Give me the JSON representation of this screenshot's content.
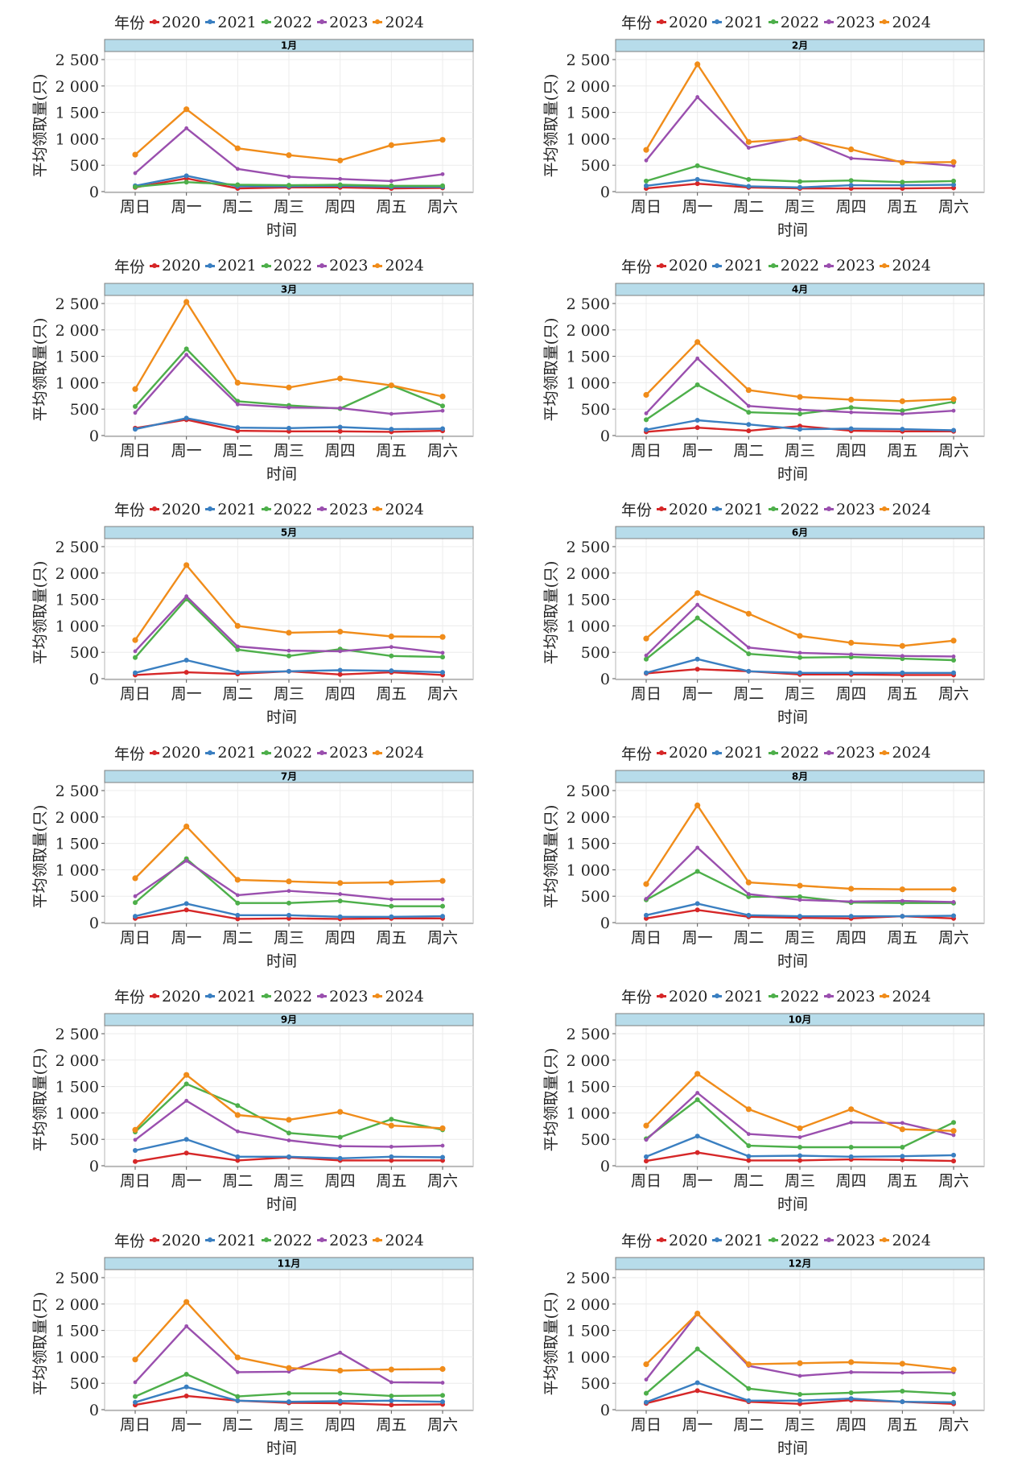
{
  "legend": {
    "title": "年份",
    "years": [
      "2020",
      "2021",
      "2022",
      "2023",
      "2024"
    ],
    "colors": {
      "2020": "#d62728",
      "2021": "#3a7fc1",
      "2022": "#4daf4a",
      "2023": "#9a4fae",
      "2024": "#f08c1a"
    }
  },
  "strip_color": "#b7dcea",
  "chart_data": [
    {
      "type": "line",
      "title": "1月",
      "xlabel": "时间",
      "ylabel": "平均领取量(只)",
      "ylim": [
        0,
        2500
      ],
      "yticks": [
        "0",
        "500",
        "1 000",
        "1 500",
        "2 000",
        "2 500"
      ],
      "yticks_values": [
        0,
        500,
        1000,
        1500,
        2000,
        2500
      ],
      "grid": true,
      "legend": "top",
      "categories": [
        "周日",
        "周一",
        "周二",
        "周三",
        "周四",
        "周五",
        "周六"
      ],
      "series": [
        {
          "name": "2020",
          "values": [
            80,
            250,
            60,
            80,
            80,
            60,
            70
          ]
        },
        {
          "name": "2021",
          "values": [
            110,
            300,
            100,
            100,
            110,
            90,
            90
          ]
        },
        {
          "name": "2022",
          "values": [
            90,
            180,
            130,
            120,
            130,
            110,
            110
          ]
        },
        {
          "name": "2023",
          "values": [
            350,
            1200,
            430,
            280,
            240,
            200,
            330
          ]
        },
        {
          "name": "2024",
          "values": [
            700,
            1560,
            820,
            690,
            590,
            880,
            980
          ]
        }
      ]
    },
    {
      "type": "line",
      "title": "2月",
      "xlabel": "时间",
      "ylabel": "平均领取量(只)",
      "ylim": [
        0,
        2500
      ],
      "yticks": [
        "0",
        "500",
        "1 000",
        "1 500",
        "2 000",
        "2 500"
      ],
      "yticks_values": [
        0,
        500,
        1000,
        1500,
        2000,
        2500
      ],
      "grid": true,
      "legend": "top",
      "categories": [
        "周日",
        "周一",
        "周二",
        "周三",
        "周四",
        "周五",
        "周六"
      ],
      "series": [
        {
          "name": "2020",
          "values": [
            60,
            150,
            80,
            60,
            60,
            60,
            70
          ]
        },
        {
          "name": "2021",
          "values": [
            110,
            230,
            100,
            80,
            120,
            120,
            130
          ]
        },
        {
          "name": "2022",
          "values": [
            200,
            490,
            230,
            190,
            210,
            180,
            200
          ]
        },
        {
          "name": "2023",
          "values": [
            590,
            1790,
            830,
            1030,
            630,
            570,
            490
          ]
        },
        {
          "name": "2024",
          "values": [
            790,
            2410,
            940,
            1000,
            800,
            550,
            560
          ]
        }
      ]
    },
    {
      "type": "line",
      "title": "3月",
      "xlabel": "时间",
      "ylabel": "平均领取量(只)",
      "ylim": [
        0,
        2500
      ],
      "yticks": [
        "0",
        "500",
        "1 000",
        "1 500",
        "2 000",
        "2 500"
      ],
      "yticks_values": [
        0,
        500,
        1000,
        1500,
        2000,
        2500
      ],
      "grid": true,
      "legend": "top",
      "categories": [
        "周日",
        "周一",
        "周二",
        "周三",
        "周四",
        "周五",
        "周六"
      ],
      "series": [
        {
          "name": "2020",
          "values": [
            140,
            300,
            90,
            80,
            80,
            70,
            90
          ]
        },
        {
          "name": "2021",
          "values": [
            120,
            330,
            150,
            140,
            160,
            120,
            130
          ]
        },
        {
          "name": "2022",
          "values": [
            550,
            1640,
            650,
            570,
            510,
            950,
            560
          ]
        },
        {
          "name": "2023",
          "values": [
            430,
            1530,
            590,
            530,
            520,
            410,
            470
          ]
        },
        {
          "name": "2024",
          "values": [
            880,
            2530,
            1000,
            910,
            1080,
            950,
            740
          ]
        }
      ]
    },
    {
      "type": "line",
      "title": "4月",
      "xlabel": "时间",
      "ylabel": "平均领取量(只)",
      "ylim": [
        0,
        2500
      ],
      "yticks": [
        "0",
        "500",
        "1 000",
        "1 500",
        "2 000",
        "2 500"
      ],
      "yticks_values": [
        0,
        500,
        1000,
        1500,
        2000,
        2500
      ],
      "grid": true,
      "legend": "top",
      "categories": [
        "周日",
        "周一",
        "周二",
        "周三",
        "周四",
        "周五",
        "周六"
      ],
      "series": [
        {
          "name": "2020",
          "values": [
            70,
            150,
            90,
            180,
            90,
            80,
            80
          ]
        },
        {
          "name": "2021",
          "values": [
            110,
            290,
            210,
            120,
            130,
            120,
            100
          ]
        },
        {
          "name": "2022",
          "values": [
            300,
            960,
            440,
            410,
            530,
            470,
            640
          ]
        },
        {
          "name": "2023",
          "values": [
            420,
            1460,
            560,
            490,
            440,
            410,
            470
          ]
        },
        {
          "name": "2024",
          "values": [
            770,
            1770,
            860,
            730,
            680,
            650,
            690
          ]
        }
      ]
    },
    {
      "type": "line",
      "title": "5月",
      "xlabel": "时间",
      "ylabel": "平均领取量(只)",
      "ylim": [
        0,
        2500
      ],
      "yticks": [
        "0",
        "500",
        "1 000",
        "1 500",
        "2 000",
        "2 500"
      ],
      "yticks_values": [
        0,
        500,
        1000,
        1500,
        2000,
        2500
      ],
      "grid": true,
      "legend": "top",
      "categories": [
        "周日",
        "周一",
        "周二",
        "周三",
        "周四",
        "周五",
        "周六"
      ],
      "series": [
        {
          "name": "2020",
          "values": [
            70,
            120,
            90,
            140,
            80,
            120,
            70
          ]
        },
        {
          "name": "2021",
          "values": [
            110,
            350,
            120,
            140,
            160,
            150,
            120
          ]
        },
        {
          "name": "2022",
          "values": [
            400,
            1510,
            550,
            430,
            560,
            430,
            410
          ]
        },
        {
          "name": "2023",
          "values": [
            520,
            1560,
            610,
            530,
            520,
            600,
            490
          ]
        },
        {
          "name": "2024",
          "values": [
            730,
            2150,
            1000,
            870,
            890,
            800,
            790
          ]
        }
      ]
    },
    {
      "type": "line",
      "title": "6月",
      "xlabel": "时间",
      "ylabel": "平均领取量(只)",
      "ylim": [
        0,
        2500
      ],
      "yticks": [
        "0",
        "500",
        "1 000",
        "1 500",
        "2 000",
        "2 500"
      ],
      "yticks_values": [
        0,
        500,
        1000,
        1500,
        2000,
        2500
      ],
      "grid": true,
      "legend": "top",
      "categories": [
        "周日",
        "周一",
        "周二",
        "周三",
        "周四",
        "周五",
        "周六"
      ],
      "series": [
        {
          "name": "2020",
          "values": [
            100,
            180,
            140,
            80,
            80,
            70,
            70
          ]
        },
        {
          "name": "2021",
          "values": [
            110,
            370,
            140,
            110,
            110,
            110,
            110
          ]
        },
        {
          "name": "2022",
          "values": [
            370,
            1150,
            470,
            400,
            410,
            380,
            350
          ]
        },
        {
          "name": "2023",
          "values": [
            440,
            1400,
            590,
            490,
            460,
            430,
            420
          ]
        },
        {
          "name": "2024",
          "values": [
            760,
            1620,
            1230,
            810,
            680,
            620,
            720
          ]
        }
      ]
    },
    {
      "type": "line",
      "title": "7月",
      "xlabel": "时间",
      "ylabel": "平均领取量(只)",
      "ylim": [
        0,
        2500
      ],
      "yticks": [
        "0",
        "500",
        "1 000",
        "1 500",
        "2 000",
        "2 500"
      ],
      "yticks_values": [
        0,
        500,
        1000,
        1500,
        2000,
        2500
      ],
      "grid": true,
      "legend": "top",
      "categories": [
        "周日",
        "周一",
        "周二",
        "周三",
        "周四",
        "周五",
        "周六"
      ],
      "series": [
        {
          "name": "2020",
          "values": [
            80,
            240,
            70,
            80,
            70,
            80,
            80
          ]
        },
        {
          "name": "2021",
          "values": [
            120,
            360,
            140,
            140,
            110,
            110,
            120
          ]
        },
        {
          "name": "2022",
          "values": [
            380,
            1210,
            370,
            370,
            410,
            310,
            310
          ]
        },
        {
          "name": "2023",
          "values": [
            500,
            1170,
            520,
            600,
            540,
            440,
            440
          ]
        },
        {
          "name": "2024",
          "values": [
            840,
            1820,
            810,
            780,
            750,
            760,
            790
          ]
        }
      ]
    },
    {
      "type": "line",
      "title": "8月",
      "xlabel": "时间",
      "ylabel": "平均领取量(只)",
      "ylim": [
        0,
        2500
      ],
      "yticks": [
        "0",
        "500",
        "1 000",
        "1 500",
        "2 000",
        "2 500"
      ],
      "yticks_values": [
        0,
        500,
        1000,
        1500,
        2000,
        2500
      ],
      "grid": true,
      "legend": "top",
      "categories": [
        "周日",
        "周一",
        "周二",
        "周三",
        "周四",
        "周五",
        "周六"
      ],
      "series": [
        {
          "name": "2020",
          "values": [
            80,
            240,
            110,
            90,
            80,
            120,
            80
          ]
        },
        {
          "name": "2021",
          "values": [
            140,
            360,
            140,
            120,
            120,
            120,
            130
          ]
        },
        {
          "name": "2022",
          "values": [
            430,
            970,
            490,
            490,
            380,
            370,
            370
          ]
        },
        {
          "name": "2023",
          "values": [
            450,
            1420,
            540,
            430,
            400,
            410,
            390
          ]
        },
        {
          "name": "2024",
          "values": [
            730,
            2220,
            760,
            700,
            640,
            630,
            630
          ]
        }
      ]
    },
    {
      "type": "line",
      "title": "9月",
      "xlabel": "时间",
      "ylabel": "平均领取量(只)",
      "ylim": [
        0,
        2500
      ],
      "yticks": [
        "0",
        "500",
        "1 000",
        "1 500",
        "2 000",
        "2 500"
      ],
      "yticks_values": [
        0,
        500,
        1000,
        1500,
        2000,
        2500
      ],
      "grid": true,
      "legend": "top",
      "categories": [
        "周日",
        "周一",
        "周二",
        "周三",
        "周四",
        "周五",
        "周六"
      ],
      "series": [
        {
          "name": "2020",
          "values": [
            80,
            240,
            100,
            160,
            100,
            100,
            100
          ]
        },
        {
          "name": "2021",
          "values": [
            290,
            500,
            170,
            170,
            140,
            170,
            160
          ]
        },
        {
          "name": "2022",
          "values": [
            640,
            1550,
            1140,
            620,
            540,
            880,
            680
          ]
        },
        {
          "name": "2023",
          "values": [
            490,
            1230,
            650,
            480,
            370,
            360,
            380
          ]
        },
        {
          "name": "2024",
          "values": [
            680,
            1720,
            960,
            870,
            1020,
            760,
            710
          ]
        }
      ]
    },
    {
      "type": "line",
      "title": "10月",
      "xlabel": "时间",
      "ylabel": "平均领取量(只)",
      "ylim": [
        0,
        2500
      ],
      "yticks": [
        "0",
        "500",
        "1 000",
        "1 500",
        "2 000",
        "2 500"
      ],
      "yticks_values": [
        0,
        500,
        1000,
        1500,
        2000,
        2500
      ],
      "grid": true,
      "legend": "top",
      "categories": [
        "周日",
        "周一",
        "周二",
        "周三",
        "周四",
        "周五",
        "周六"
      ],
      "series": [
        {
          "name": "2020",
          "values": [
            90,
            250,
            100,
            100,
            120,
            110,
            90
          ]
        },
        {
          "name": "2021",
          "values": [
            170,
            560,
            180,
            190,
            170,
            180,
            200
          ]
        },
        {
          "name": "2022",
          "values": [
            510,
            1250,
            380,
            350,
            350,
            350,
            820
          ]
        },
        {
          "name": "2023",
          "values": [
            490,
            1380,
            600,
            540,
            820,
            810,
            580
          ]
        },
        {
          "name": "2024",
          "values": [
            760,
            1740,
            1070,
            710,
            1070,
            690,
            660
          ]
        }
      ]
    },
    {
      "type": "line",
      "title": "11月",
      "xlabel": "时间",
      "ylabel": "平均领取量(只)",
      "ylim": [
        0,
        2500
      ],
      "yticks": [
        "0",
        "500",
        "1 000",
        "1 500",
        "2 000",
        "2 500"
      ],
      "yticks_values": [
        0,
        500,
        1000,
        1500,
        2000,
        2500
      ],
      "grid": true,
      "legend": "top",
      "categories": [
        "周日",
        "周一",
        "周二",
        "周三",
        "周四",
        "周五",
        "周六"
      ],
      "series": [
        {
          "name": "2020",
          "values": [
            90,
            260,
            170,
            130,
            120,
            90,
            100
          ]
        },
        {
          "name": "2021",
          "values": [
            140,
            430,
            170,
            150,
            160,
            170,
            150
          ]
        },
        {
          "name": "2022",
          "values": [
            250,
            670,
            250,
            310,
            310,
            260,
            270
          ]
        },
        {
          "name": "2023",
          "values": [
            520,
            1580,
            710,
            720,
            1080,
            520,
            510
          ]
        },
        {
          "name": "2024",
          "values": [
            950,
            2040,
            990,
            790,
            740,
            760,
            770
          ]
        }
      ]
    },
    {
      "type": "line",
      "title": "12月",
      "xlabel": "时间",
      "ylabel": "平均领取量(只)",
      "ylim": [
        0,
        2500
      ],
      "yticks": [
        "0",
        "500",
        "1 000",
        "1 500",
        "2 000",
        "2 500"
      ],
      "yticks_values": [
        0,
        500,
        1000,
        1500,
        2000,
        2500
      ],
      "grid": true,
      "legend": "top",
      "categories": [
        "周日",
        "周一",
        "周二",
        "周三",
        "周四",
        "周五",
        "周六"
      ],
      "series": [
        {
          "name": "2020",
          "values": [
            120,
            360,
            150,
            110,
            180,
            150,
            110
          ]
        },
        {
          "name": "2021",
          "values": [
            140,
            510,
            170,
            170,
            210,
            150,
            140
          ]
        },
        {
          "name": "2022",
          "values": [
            310,
            1150,
            400,
            290,
            320,
            350,
            300
          ]
        },
        {
          "name": "2023",
          "values": [
            570,
            1820,
            830,
            640,
            710,
            700,
            710
          ]
        },
        {
          "name": "2024",
          "values": [
            860,
            1820,
            860,
            880,
            900,
            870,
            760
          ]
        }
      ]
    }
  ]
}
